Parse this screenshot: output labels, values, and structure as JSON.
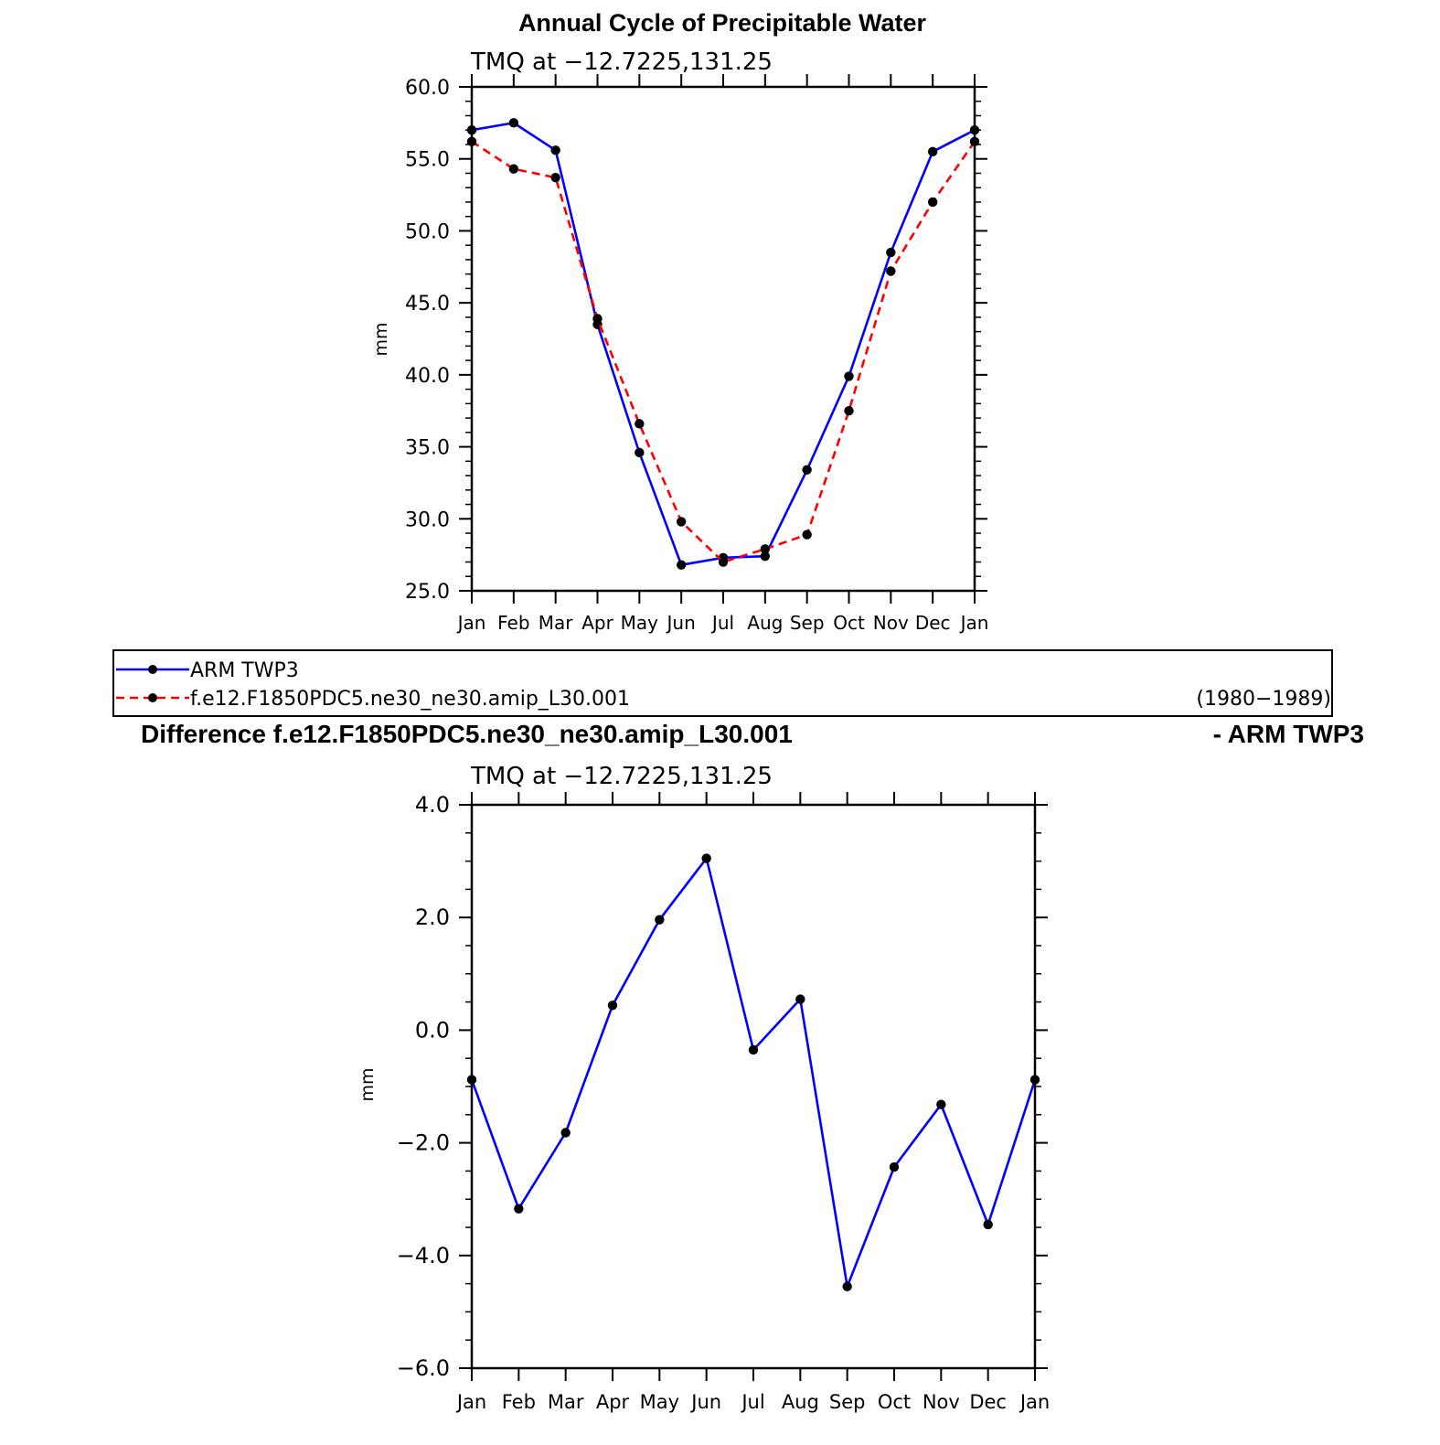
{
  "chart_data": [
    {
      "type": "line",
      "title": "Annual Cycle of Precipitable Water",
      "subtitle": "TMQ at −12.7225,131.25",
      "ylabel": "mm",
      "xlabel": "",
      "categories": [
        "Jan",
        "Feb",
        "Mar",
        "Apr",
        "May",
        "Jun",
        "Jul",
        "Aug",
        "Sep",
        "Oct",
        "Nov",
        "Dec",
        "Jan"
      ],
      "ylim": [
        25.0,
        60.0
      ],
      "yticks": [
        "25.0",
        "30.0",
        "35.0",
        "40.0",
        "45.0",
        "50.0",
        "55.0",
        "60.0"
      ],
      "series": [
        {
          "name": "ARM TWP3",
          "color": "#0000ff",
          "style": "solid",
          "values": [
            57.0,
            57.5,
            55.6,
            43.5,
            34.6,
            26.8,
            27.3,
            27.4,
            33.4,
            39.9,
            48.5,
            55.5,
            57.0
          ]
        },
        {
          "name": "f.e12.F1850PDC5.ne30_ne30.amip_L30.001",
          "color": "#ff0000",
          "style": "dashed",
          "values": [
            56.2,
            54.3,
            53.7,
            43.9,
            36.6,
            29.8,
            27.0,
            27.9,
            28.9,
            37.5,
            47.2,
            52.0,
            56.2
          ]
        }
      ],
      "legend": {
        "placement": "below",
        "entries": [
          "ARM TWP3",
          "f.e12.F1850PDC5.ne30_ne30.amip_L30.001"
        ],
        "note": "(1980−1989)"
      }
    },
    {
      "type": "line",
      "title": "Difference f.e12.F1850PDC5.ne30_ne30.amip_L30.001",
      "title_right": "- ARM TWP3",
      "subtitle": "TMQ at −12.7225,131.25",
      "ylabel": "mm",
      "xlabel": "",
      "categories": [
        "Jan",
        "Feb",
        "Mar",
        "Apr",
        "May",
        "Jun",
        "Jul",
        "Aug",
        "Sep",
        "Oct",
        "Nov",
        "Dec",
        "Jan"
      ],
      "ylim": [
        -6.0,
        4.0
      ],
      "yticks": [
        "−6.0",
        "−4.0",
        "−2.0",
        "0.0",
        "2.0",
        "4.0"
      ],
      "series": [
        {
          "name": "Difference",
          "color": "#0000ff",
          "style": "solid",
          "values": [
            -0.88,
            -3.17,
            -1.82,
            0.44,
            1.96,
            3.05,
            -0.35,
            0.55,
            -4.55,
            -2.43,
            -1.32,
            -3.45,
            -0.88
          ]
        }
      ]
    }
  ]
}
